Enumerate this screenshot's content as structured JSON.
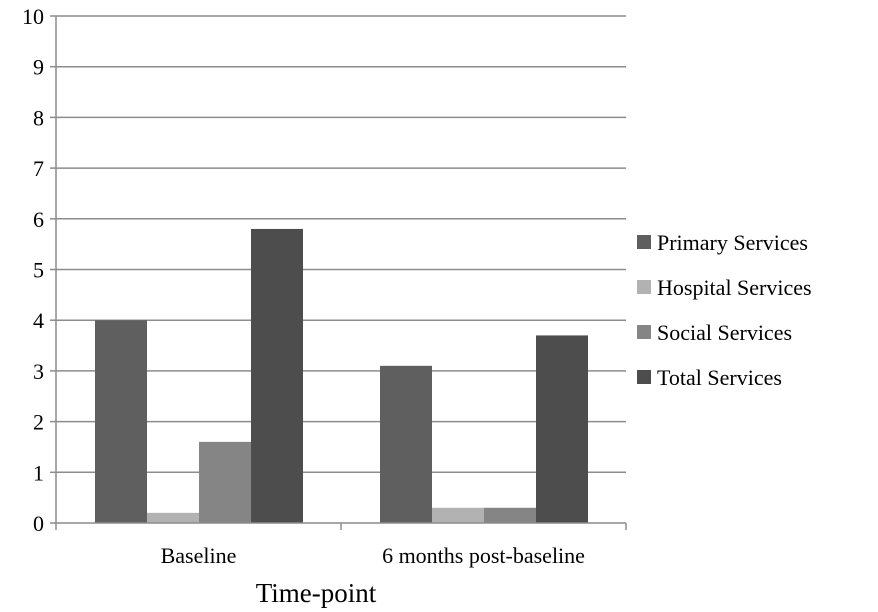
{
  "chart_data": {
    "type": "bar",
    "title": "",
    "xlabel": "Time-point",
    "ylabel": "",
    "categories": [
      "Baseline",
      "6 months post-baseline"
    ],
    "series": [
      {
        "name": "Primary Services",
        "values": [
          4.0,
          3.1
        ],
        "color": "#5f5f5f"
      },
      {
        "name": "Hospital Services",
        "values": [
          0.2,
          0.3
        ],
        "color": "#b2b2b2"
      },
      {
        "name": "Social Services",
        "values": [
          1.6,
          0.3
        ],
        "color": "#858585"
      },
      {
        "name": "Total Services",
        "values": [
          5.8,
          3.7
        ],
        "color": "#4d4d4d"
      }
    ],
    "ylim": [
      0,
      10
    ],
    "yticks": [
      "0",
      "1",
      "2",
      "3",
      "4",
      "5",
      "6",
      "7",
      "8",
      "9",
      "10"
    ],
    "grid": true,
    "legend_position": "right"
  }
}
